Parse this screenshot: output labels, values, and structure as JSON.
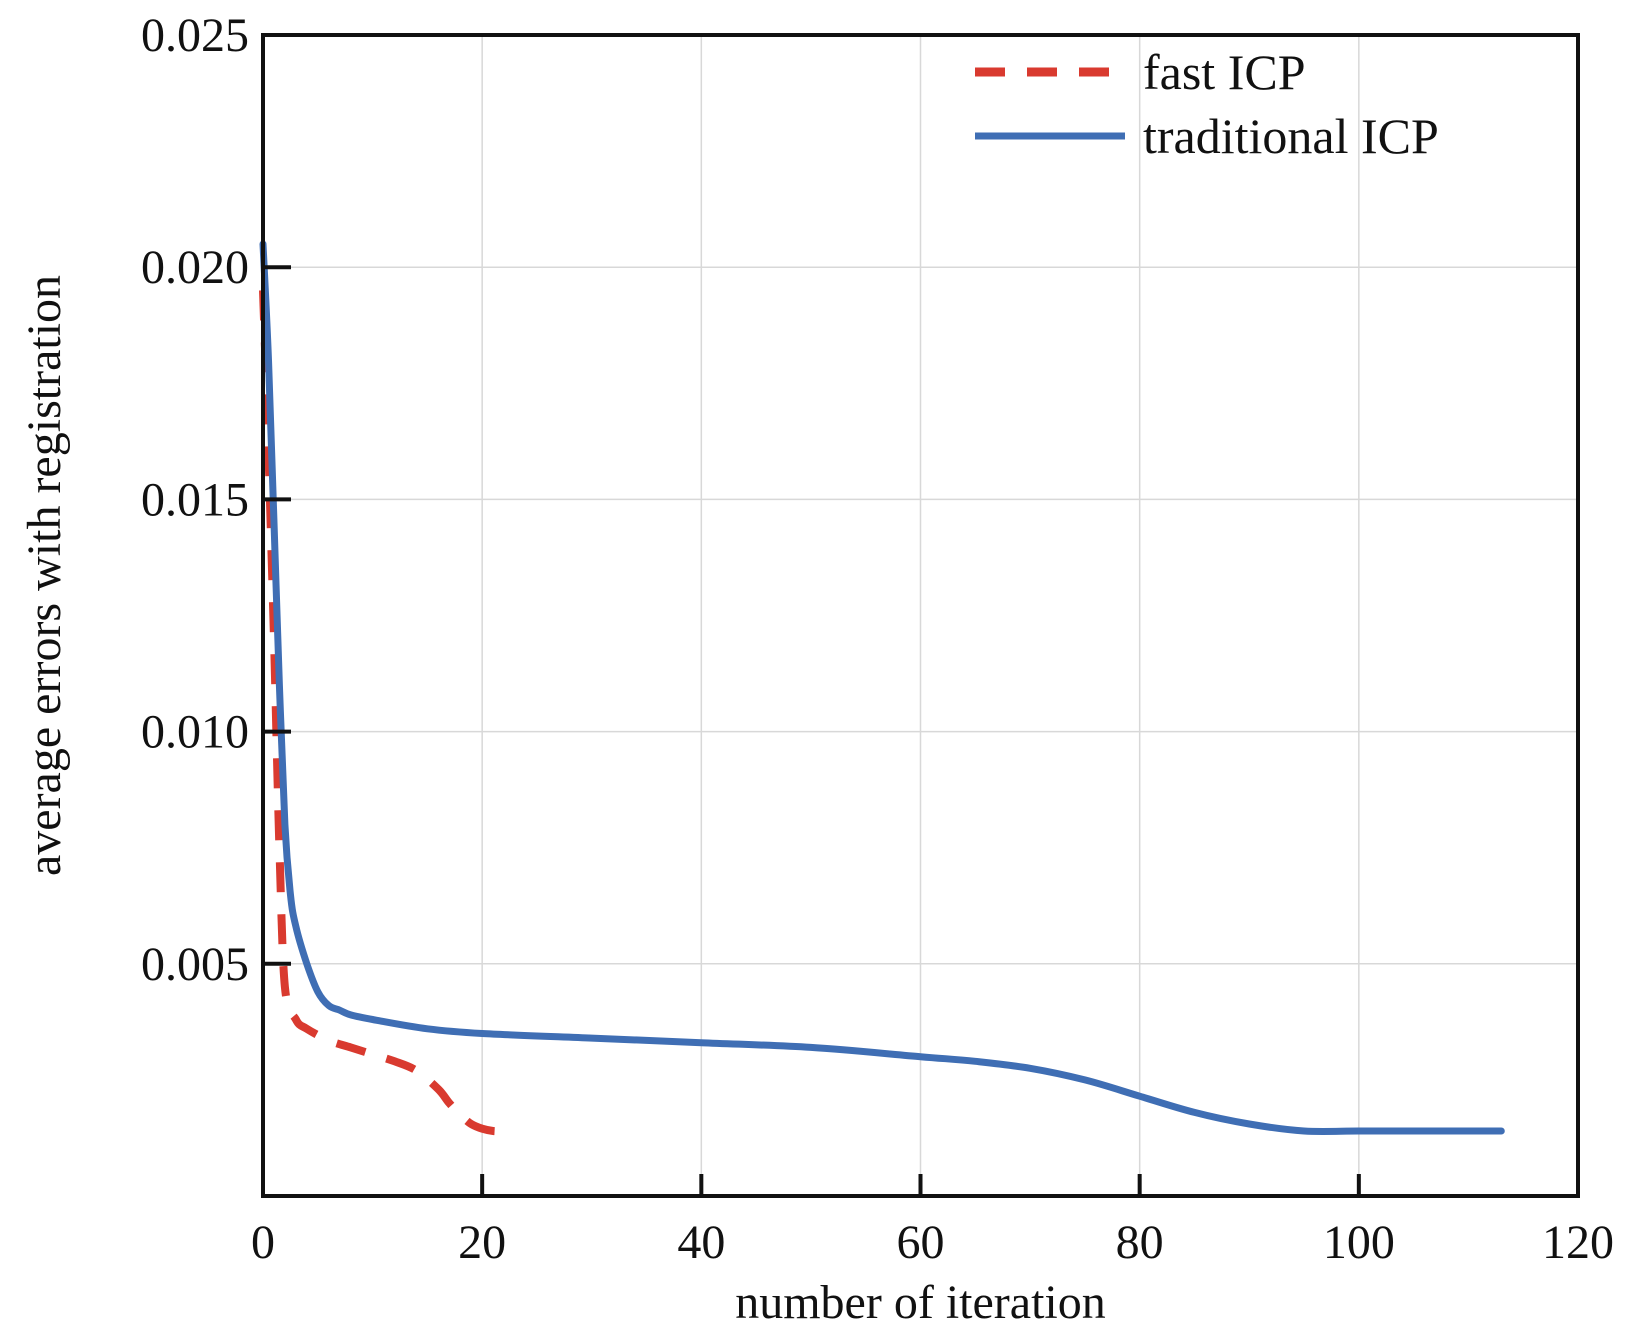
{
  "chart_data": {
    "type": "line",
    "title": "",
    "xlabel": "number of iteration",
    "ylabel": "average errors with registration",
    "xlim": [
      0,
      120
    ],
    "ylim": [
      0,
      0.025
    ],
    "x_ticks": [
      0,
      20,
      40,
      60,
      80,
      100,
      120
    ],
    "x_tick_labels": [
      "0",
      "20",
      "40",
      "60",
      "80",
      "100",
      "120"
    ],
    "y_ticks": [
      0.005,
      0.01,
      0.015,
      0.02,
      0.025
    ],
    "y_tick_labels": [
      "0.005",
      "0.010",
      "0.015",
      "0.020",
      "0.025"
    ],
    "grid": true,
    "legend_position": "top-right",
    "series": [
      {
        "name": "fast ICP",
        "color": "#d93a2f",
        "style": "dashed",
        "x": [
          0,
          0.5,
          1,
          1.5,
          2,
          3,
          4,
          6,
          8,
          10,
          12,
          14,
          16,
          17,
          18,
          19,
          20,
          21,
          22
        ],
        "y": [
          0.0195,
          0.016,
          0.012,
          0.0075,
          0.0045,
          0.0038,
          0.0036,
          0.00335,
          0.0032,
          0.00305,
          0.0029,
          0.0027,
          0.0023,
          0.002,
          0.00175,
          0.00155,
          0.00145,
          0.0014,
          0.0014
        ]
      },
      {
        "name": "traditional ICP",
        "color": "#3f6eb4",
        "style": "solid",
        "x": [
          0,
          0.5,
          1,
          1.5,
          2,
          2.5,
          3,
          4,
          5,
          6,
          7,
          8,
          10,
          15,
          20,
          30,
          40,
          50,
          60,
          65,
          70,
          75,
          80,
          85,
          90,
          95,
          100,
          105,
          110,
          113
        ],
        "y": [
          0.0205,
          0.018,
          0.0145,
          0.011,
          0.008,
          0.0065,
          0.0058,
          0.005,
          0.0044,
          0.0041,
          0.004,
          0.0039,
          0.0038,
          0.0036,
          0.0035,
          0.0034,
          0.0033,
          0.0032,
          0.003,
          0.0029,
          0.00275,
          0.0025,
          0.00215,
          0.0018,
          0.00155,
          0.0014,
          0.0014,
          0.0014,
          0.0014,
          0.0014
        ]
      }
    ]
  }
}
